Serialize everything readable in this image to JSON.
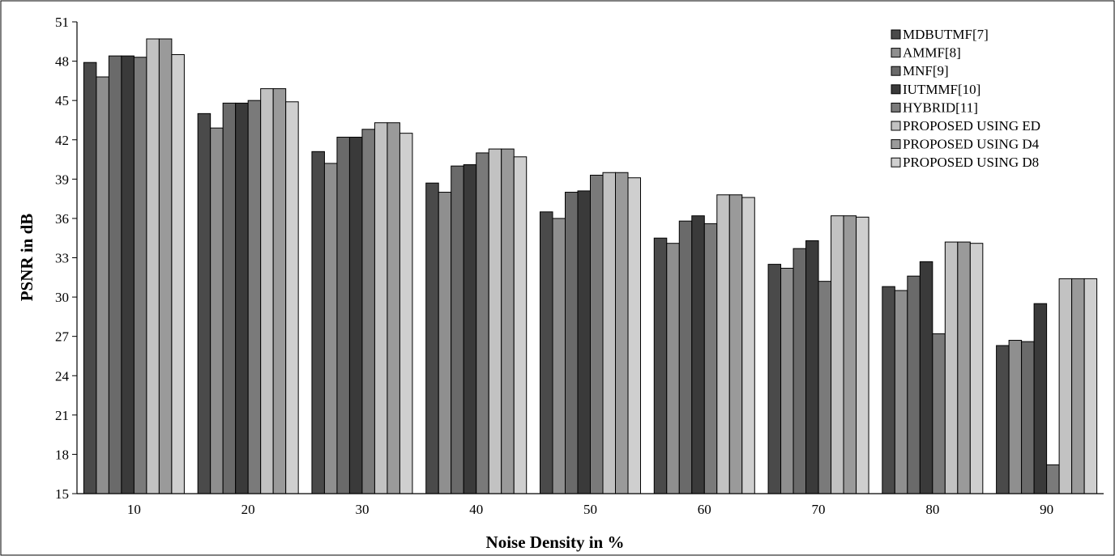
{
  "chart_data": {
    "type": "bar",
    "xlabel": "Noise Density in %",
    "ylabel": "PSNR in dB",
    "categories": [
      "10",
      "20",
      "30",
      "40",
      "50",
      "60",
      "70",
      "80",
      "90"
    ],
    "ylim": [
      15,
      51
    ],
    "yticks": [
      "15",
      "18",
      "21",
      "24",
      "27",
      "30",
      "33",
      "36",
      "39",
      "42",
      "45",
      "48",
      "51"
    ],
    "grid": false,
    "legend_position": "top-right",
    "series": [
      {
        "name": "MDBUTMF[7]",
        "color": "#4a4a4a",
        "values": [
          47.9,
          44.0,
          41.1,
          38.7,
          36.5,
          34.5,
          32.5,
          30.8,
          26.3
        ]
      },
      {
        "name": "AMMF[8]",
        "color": "#8f8f8f",
        "values": [
          46.8,
          42.9,
          40.2,
          38.0,
          36.0,
          34.1,
          32.2,
          30.5,
          26.7
        ]
      },
      {
        "name": "MNF[9]",
        "color": "#6a6a6a",
        "values": [
          48.4,
          44.8,
          42.2,
          40.0,
          38.0,
          35.8,
          33.7,
          31.6,
          26.6
        ]
      },
      {
        "name": "IUTMMF[10]",
        "color": "#3a3a3a",
        "values": [
          48.4,
          44.8,
          42.2,
          40.1,
          38.1,
          36.2,
          34.3,
          32.7,
          29.5
        ]
      },
      {
        "name": "HYBRID[11]",
        "color": "#7a7a7a",
        "values": [
          48.3,
          45.0,
          42.8,
          41.0,
          39.3,
          35.6,
          31.2,
          27.2,
          17.2
        ]
      },
      {
        "name": "PROPOSED USING ED",
        "color": "#c2c2c2",
        "values": [
          49.7,
          45.9,
          43.3,
          41.3,
          39.5,
          37.8,
          36.2,
          34.2,
          31.4
        ]
      },
      {
        "name": "PROPOSED USING D4",
        "color": "#9a9a9a",
        "values": [
          49.7,
          45.9,
          43.3,
          41.3,
          39.5,
          37.8,
          36.2,
          34.2,
          31.4
        ]
      },
      {
        "name": "PROPOSED USING D8",
        "color": "#cfcfcf",
        "values": [
          48.5,
          44.9,
          42.5,
          40.7,
          39.1,
          37.6,
          36.1,
          34.1,
          31.4
        ]
      }
    ]
  }
}
